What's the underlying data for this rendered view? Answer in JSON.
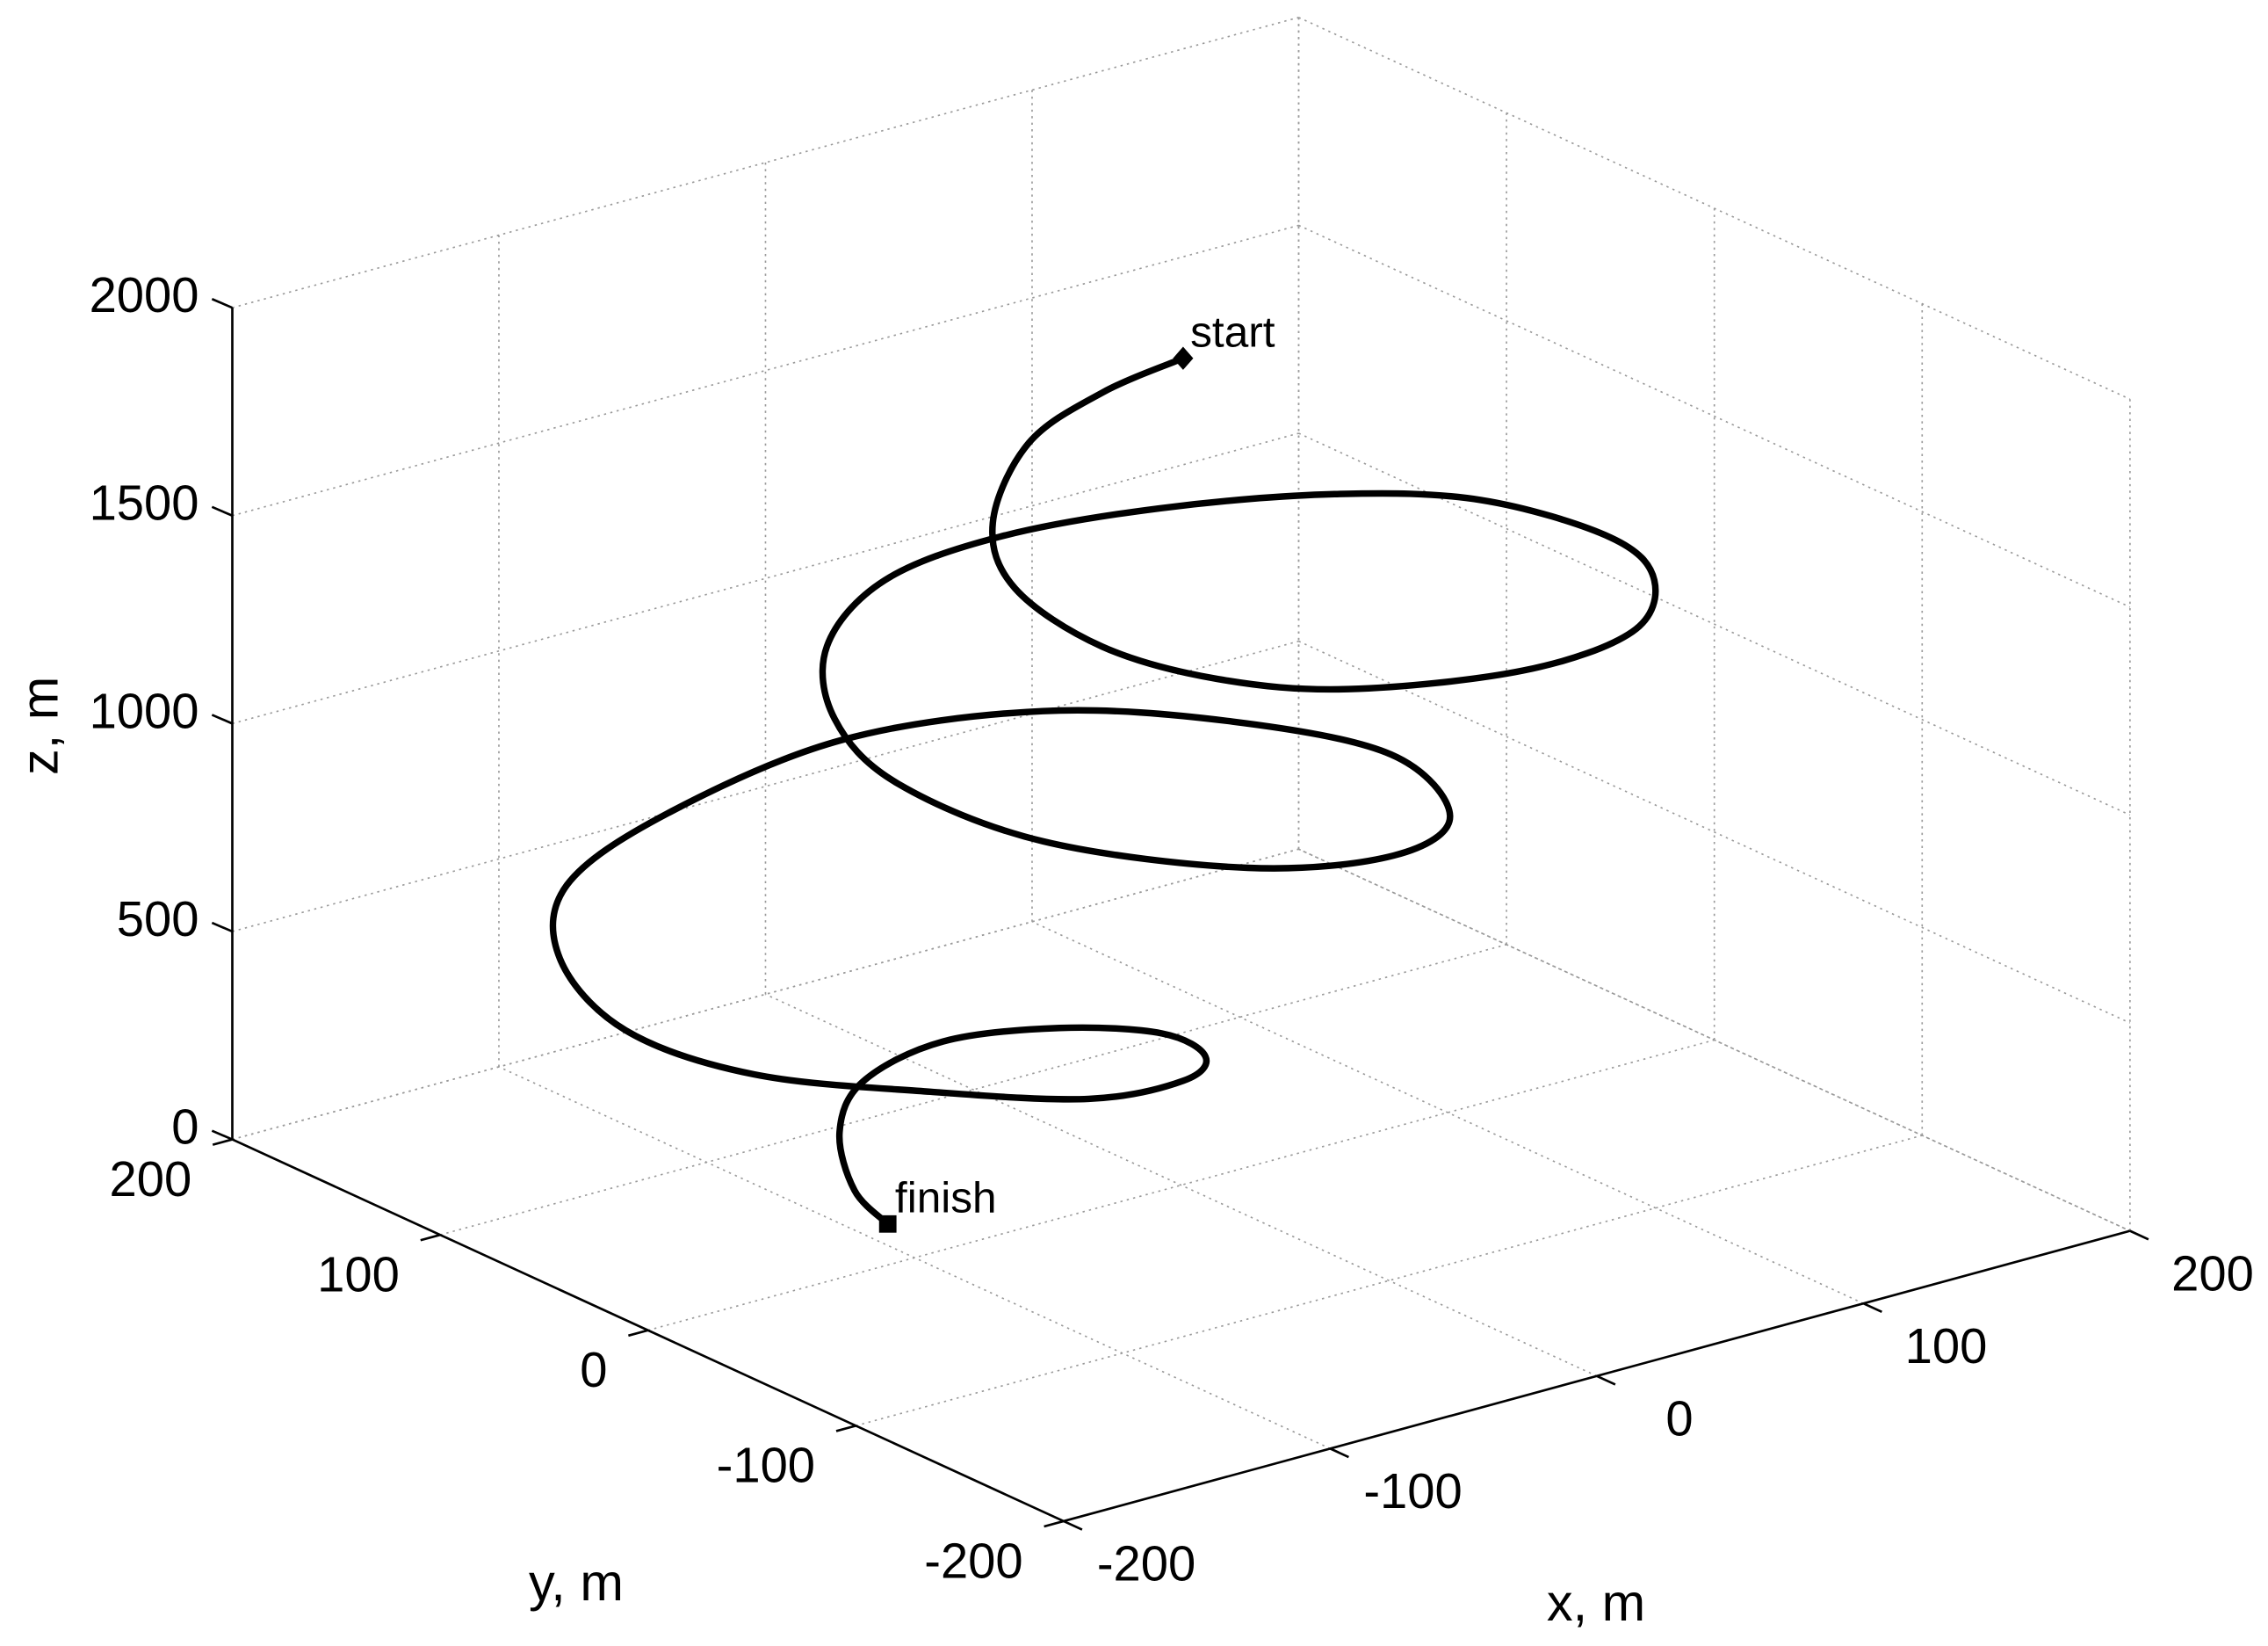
{
  "chart_data": {
    "type": "line3d",
    "color": "#000000",
    "grid": true,
    "xlabel": "x, m",
    "ylabel": "y, m",
    "zlabel": "z, m",
    "xlim": [
      -200,
      200
    ],
    "ylim": [
      -200,
      200
    ],
    "zlim": [
      0,
      2000
    ],
    "xticks": [
      -200,
      -100,
      0,
      100,
      200
    ],
    "yticks": [
      -200,
      -100,
      0,
      100,
      200
    ],
    "zticks": [
      0,
      500,
      1000,
      1500,
      2000
    ],
    "x": [
      21,
      -6,
      -40,
      -80,
      -99,
      -99,
      -79,
      -44,
      16,
      71,
      112,
      133,
      131,
      109,
      70,
      27,
      -13,
      -51,
      -77,
      -86,
      -72,
      -28,
      22,
      65,
      92,
      81,
      51,
      -2,
      -71,
      -122,
      -152,
      -164,
      -147,
      -105,
      -62,
      -21,
      6,
      17,
      5,
      -20,
      -50,
      -72,
      -89,
      -89
    ],
    "y": [
      26,
      30,
      22,
      -12,
      -47,
      -89,
      -119,
      -137,
      -144,
      -126,
      -84,
      -36,
      24,
      66,
      100,
      122,
      126,
      105,
      68,
      26,
      -26,
      -68,
      -74,
      -46,
      17,
      79,
      132,
      161,
      156,
      139,
      104,
      57,
      17,
      -14,
      -35,
      -28,
      -4,
      31,
      65,
      89,
      89,
      72,
      43,
      27
    ],
    "z": [
      1892,
      1848,
      1804,
      1760,
      1716,
      1672,
      1628,
      1584,
      1540,
      1496,
      1452,
      1408,
      1364,
      1320,
      1276,
      1232,
      1188,
      1144,
      1100,
      1056,
      1012,
      968,
      924,
      880,
      836,
      792,
      748,
      704,
      660,
      616,
      572,
      528,
      484,
      440,
      396,
      352,
      308,
      264,
      220,
      176,
      132,
      88,
      44,
      0
    ],
    "annotations": [
      {
        "text": "start",
        "marker": "diamond"
      },
      {
        "text": "finish",
        "marker": "square"
      }
    ]
  }
}
